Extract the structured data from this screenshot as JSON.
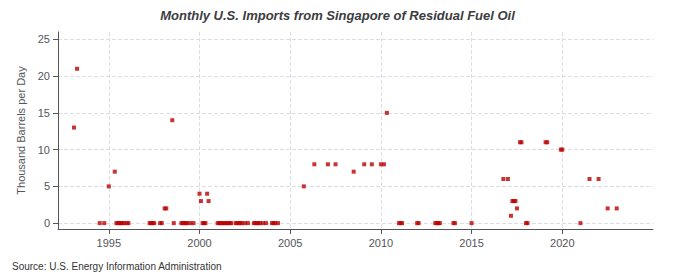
{
  "chart_data": {
    "type": "scatter",
    "title": "Monthly U.S. Imports from Singapore of Residual Fuel Oil",
    "ylabel": "Thousand Barrels per Day",
    "annotations": [
      "Source: U.S. Energy Information Administration"
    ],
    "color": "#bb0000",
    "marker": "square",
    "grid": true,
    "xlim": [
      1992.2,
      2025.0
    ],
    "ylim": [
      -0.8,
      26.0
    ],
    "xticks": [
      1995,
      2000,
      2005,
      2010,
      2015,
      2020
    ],
    "yticks": [
      0,
      5,
      10,
      15,
      20,
      25
    ],
    "x": [
      1993.08,
      1993.25,
      1994.5,
      1994.75,
      1995.0,
      1995.33,
      1995.42,
      1995.5,
      1995.58,
      1995.67,
      1995.75,
      1995.83,
      1996.0,
      1996.08,
      1997.25,
      1997.33,
      1997.42,
      1997.5,
      1997.83,
      1997.92,
      1998.08,
      1998.17,
      1998.5,
      1998.58,
      1999.0,
      1999.08,
      1999.17,
      1999.25,
      1999.33,
      1999.5,
      1999.67,
      2000.0,
      2000.08,
      2000.17,
      2000.25,
      2000.33,
      2000.42,
      2000.5,
      2001.0,
      2001.08,
      2001.17,
      2001.25,
      2001.33,
      2001.42,
      2001.5,
      2001.58,
      2001.67,
      2001.75,
      2002.0,
      2002.08,
      2002.17,
      2002.25,
      2002.33,
      2002.5,
      2002.67,
      2003.0,
      2003.08,
      2003.17,
      2003.25,
      2003.33,
      2003.5,
      2003.67,
      2004.0,
      2004.08,
      2004.17,
      2004.33,
      2005.75,
      2006.33,
      2007.08,
      2007.5,
      2008.5,
      2009.08,
      2009.5,
      2010.0,
      2010.17,
      2010.33,
      2011.0,
      2011.08,
      2011.17,
      2012.0,
      2012.08,
      2013.0,
      2013.08,
      2013.17,
      2013.25,
      2014.0,
      2014.08,
      2015.0,
      2016.75,
      2017.0,
      2017.17,
      2017.25,
      2017.33,
      2017.42,
      2017.5,
      2017.67,
      2017.75,
      2018.0,
      2018.08,
      2019.08,
      2019.17,
      2019.92,
      2020.0,
      2021.0,
      2021.5,
      2022.0,
      2022.5,
      2023.0
    ],
    "values": [
      13,
      21,
      0,
      0,
      5,
      7,
      0,
      0,
      0,
      0,
      0,
      0,
      0,
      0,
      0,
      0,
      0,
      0,
      0,
      0,
      2,
      2,
      14,
      0,
      0,
      0,
      0,
      0,
      0,
      0,
      0,
      4,
      3,
      0,
      0,
      0,
      4,
      3,
      0,
      0,
      0,
      0,
      0,
      0,
      0,
      0,
      0,
      0,
      0,
      0,
      0,
      0,
      0,
      0,
      0,
      0,
      0,
      0,
      0,
      0,
      0,
      0,
      0,
      0,
      0,
      0,
      5,
      8,
      8,
      8,
      7,
      8,
      8,
      8,
      8,
      15,
      0,
      0,
      0,
      0,
      0,
      0,
      0,
      0,
      0,
      0,
      0,
      0,
      6,
      6,
      1,
      3,
      3,
      3,
      2,
      11,
      11,
      0,
      0,
      11,
      11,
      10,
      10,
      0,
      6,
      6,
      2,
      2
    ]
  }
}
